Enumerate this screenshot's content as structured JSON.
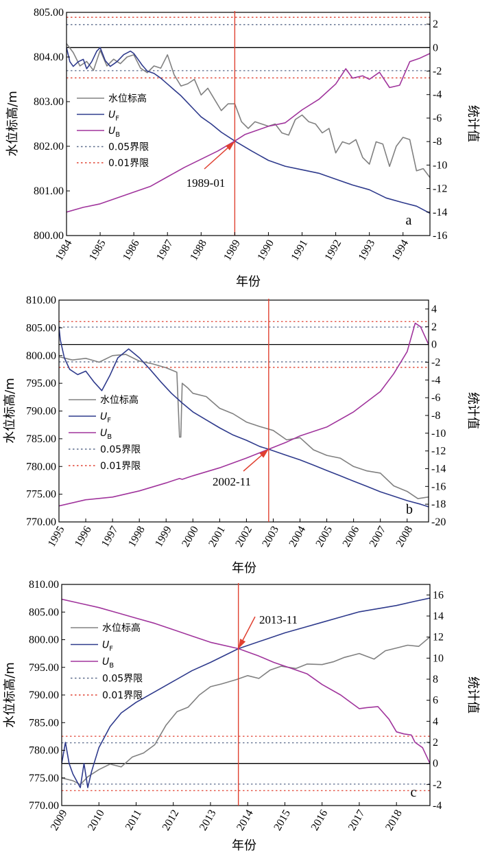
{
  "figure": {
    "colors": {
      "water_level": "#808080",
      "uf": "#2e3a8c",
      "ub": "#a0349c",
      "limit_005": "#5a6a8a",
      "limit_001": "#e04030",
      "change_point": "#e04030",
      "zero_line": "#000000"
    }
  },
  "chart_data": [
    {
      "type": "line",
      "panel_label": "a",
      "xlabel": "年份",
      "ylabel_left": "水位标高/m",
      "ylabel_right": "统计值",
      "xlim": [
        1984,
        1994.8
      ],
      "x_ticks": [
        1984,
        1985,
        1986,
        1987,
        1988,
        1989,
        1990,
        1991,
        1992,
        1993,
        1994
      ],
      "ylim_left": [
        800,
        805
      ],
      "y_ticks_left": [
        "800.00",
        "801.00",
        "802.00",
        "803.00",
        "804.00",
        "805.00"
      ],
      "ylim_right": [
        -16,
        3
      ],
      "y_ticks_right": [
        -16,
        -14,
        -12,
        -10,
        -8,
        -6,
        -4,
        -2,
        0,
        2
      ],
      "legend": [
        "水位标高",
        "UF",
        "UB",
        "0.05界限",
        "0.01界限"
      ],
      "annotation": {
        "text": "1989-01",
        "x": 1989.0,
        "y_stat": -8.0
      },
      "change_point_x": 1989.0,
      "limits": {
        "p005": [
          -1.96,
          1.96
        ],
        "p001": [
          -2.58,
          2.58
        ]
      },
      "series": [
        {
          "name": "水位标高",
          "axis": "left",
          "x": [
            1984.0,
            1984.2,
            1984.4,
            1984.6,
            1984.8,
            1985.0,
            1985.2,
            1985.4,
            1985.6,
            1985.8,
            1986.0,
            1986.2,
            1986.4,
            1986.6,
            1986.8,
            1987.0,
            1987.2,
            1987.4,
            1987.6,
            1987.8,
            1988.0,
            1988.2,
            1988.4,
            1988.6,
            1988.8,
            1989.0,
            1989.2,
            1989.4,
            1989.6,
            1989.8,
            1990.0,
            1990.2,
            1990.4,
            1990.6,
            1990.8,
            1991.0,
            1991.2,
            1991.4,
            1991.6,
            1991.8,
            1992.0,
            1992.2,
            1992.4,
            1992.6,
            1992.8,
            1993.0,
            1993.2,
            1993.4,
            1993.6,
            1993.8,
            1994.0,
            1994.2,
            1994.4,
            1994.6,
            1994.8
          ],
          "y": [
            804.3,
            804.1,
            803.8,
            803.9,
            803.7,
            804.15,
            803.8,
            803.95,
            803.85,
            804.0,
            804.05,
            803.75,
            803.65,
            803.8,
            803.75,
            804.05,
            803.6,
            803.35,
            803.4,
            803.5,
            803.15,
            803.3,
            803.05,
            802.8,
            802.95,
            802.95,
            802.55,
            802.4,
            802.55,
            802.5,
            802.45,
            802.5,
            802.3,
            802.25,
            802.6,
            802.7,
            802.55,
            802.5,
            802.3,
            802.4,
            801.85,
            802.1,
            802.05,
            802.15,
            801.75,
            801.6,
            802.1,
            802.05,
            801.55,
            802.0,
            802.2,
            802.15,
            801.45,
            801.5,
            801.3
          ]
        },
        {
          "name": "UF",
          "axis": "right",
          "x": [
            1984.0,
            1984.1,
            1984.2,
            1984.35,
            1984.5,
            1984.6,
            1984.75,
            1984.9,
            1985.0,
            1985.15,
            1985.3,
            1985.5,
            1985.7,
            1985.9,
            1986.0,
            1986.1,
            1986.25,
            1986.4,
            1986.6,
            1986.8,
            1987.0,
            1987.2,
            1987.4,
            1987.6,
            1987.8,
            1988.0,
            1988.3,
            1988.6,
            1989.0,
            1989.5,
            1990.0,
            1990.5,
            1991.0,
            1991.5,
            1992.0,
            1992.5,
            1993.0,
            1993.5,
            1994.0,
            1994.4,
            1994.8
          ],
          "y": [
            0.0,
            -1.2,
            -1.6,
            -1.2,
            -1.0,
            -1.8,
            -1.2,
            -0.3,
            0.0,
            -1.1,
            -1.6,
            -1.2,
            -0.6,
            -0.3,
            -0.5,
            -0.9,
            -1.5,
            -2.0,
            -2.2,
            -2.6,
            -3.1,
            -3.6,
            -4.1,
            -4.7,
            -5.3,
            -5.9,
            -6.5,
            -7.2,
            -7.95,
            -8.8,
            -9.6,
            -10.1,
            -10.4,
            -10.7,
            -11.2,
            -11.7,
            -12.1,
            -12.8,
            -13.2,
            -13.5,
            -14.1
          ]
        },
        {
          "name": "UB",
          "axis": "right",
          "x": [
            1984.0,
            1984.5,
            1985.0,
            1985.5,
            1986.0,
            1986.5,
            1987.0,
            1987.5,
            1988.0,
            1988.5,
            1989.0,
            1989.3,
            1989.6,
            1990.0,
            1990.5,
            1991.0,
            1991.5,
            1992.0,
            1992.3,
            1992.5,
            1992.8,
            1993.0,
            1993.3,
            1993.6,
            1993.9,
            1994.2,
            1994.5,
            1994.8
          ],
          "y": [
            -14.0,
            -13.6,
            -13.3,
            -12.8,
            -12.3,
            -11.8,
            -11.0,
            -10.2,
            -9.5,
            -8.8,
            -7.95,
            -7.4,
            -7.1,
            -6.7,
            -6.4,
            -5.3,
            -4.4,
            -3.1,
            -1.8,
            -2.6,
            -2.4,
            -2.7,
            -2.1,
            -3.4,
            -3.2,
            -1.2,
            -0.9,
            -0.5
          ]
        }
      ]
    },
    {
      "type": "line",
      "panel_label": "b",
      "xlabel": "年份",
      "ylabel_left": "水位标高/m",
      "ylabel_right": "统计值",
      "xlim": [
        1995,
        2008.8
      ],
      "x_ticks": [
        1995,
        1996,
        1997,
        1998,
        1999,
        2000,
        2001,
        2002,
        2003,
        2004,
        2005,
        2006,
        2007,
        2008
      ],
      "ylim_left": [
        770,
        810
      ],
      "y_ticks_left": [
        "770.00",
        "775.00",
        "780.00",
        "785.00",
        "790.00",
        "795.00",
        "800.00",
        "805.00",
        "810.00"
      ],
      "ylim_right": [
        -20,
        5
      ],
      "y_ticks_right": [
        -20,
        -18,
        -16,
        -14,
        -12,
        -10,
        -8,
        -6,
        -4,
        -2,
        0,
        2,
        4
      ],
      "legend": [
        "水位标高",
        "UF",
        "UB",
        "0.05界限",
        "0.01界限"
      ],
      "annotation": {
        "text": "2002-11",
        "x": 2002.83,
        "y_stat": -11.8
      },
      "change_point_x": 2002.83,
      "limits": {
        "p005": [
          -1.96,
          1.96
        ],
        "p001": [
          -2.58,
          2.58
        ]
      },
      "series": [
        {
          "name": "水位标高",
          "axis": "left",
          "x": [
            1995.0,
            1995.5,
            1996.0,
            1996.5,
            1997.0,
            1997.5,
            1998.0,
            1998.5,
            1999.0,
            1999.4,
            1999.5,
            1999.55,
            1999.6,
            1999.8,
            2000.0,
            2000.5,
            2001.0,
            2001.5,
            2002.0,
            2002.5,
            2003.0,
            2003.5,
            2004.0,
            2004.5,
            2005.0,
            2005.5,
            2006.0,
            2006.5,
            2007.0,
            2007.5,
            2008.0,
            2008.4,
            2008.8
          ],
          "y": [
            799.8,
            799.2,
            799.5,
            798.8,
            800.0,
            800.2,
            799.0,
            798.5,
            797.8,
            797.0,
            785.3,
            785.3,
            795.0,
            794.2,
            793.2,
            792.6,
            790.5,
            789.5,
            788.0,
            787.2,
            786.5,
            784.8,
            785.2,
            783.0,
            782.0,
            781.5,
            780.0,
            779.2,
            778.8,
            776.5,
            775.5,
            774.2,
            774.5
          ]
        },
        {
          "name": "UF",
          "axis": "right",
          "x": [
            1995.0,
            1995.05,
            1995.2,
            1995.4,
            1995.7,
            1996.0,
            1996.3,
            1996.6,
            1996.9,
            1997.2,
            1997.6,
            1998.0,
            1998.4,
            1998.8,
            1999.2,
            1999.6,
            2000.0,
            2000.5,
            2001.0,
            2001.5,
            2002.0,
            2002.5,
            2002.83,
            2003.5,
            2004.0,
            2004.5,
            2005.0,
            2005.5,
            2006.0,
            2006.5,
            2007.0,
            2007.5,
            2008.0,
            2008.5,
            2008.8
          ],
          "y": [
            2.0,
            0.5,
            -1.5,
            -2.8,
            -3.4,
            -3.0,
            -4.2,
            -5.2,
            -3.5,
            -1.5,
            -0.5,
            -1.5,
            -2.8,
            -4.2,
            -5.5,
            -6.6,
            -7.6,
            -8.5,
            -9.4,
            -10.2,
            -10.8,
            -11.5,
            -11.8,
            -12.5,
            -13.0,
            -13.6,
            -14.2,
            -14.8,
            -15.4,
            -16.0,
            -16.6,
            -17.1,
            -17.6,
            -18.0,
            -18.3
          ]
        },
        {
          "name": "UB",
          "axis": "right",
          "x": [
            1995.0,
            1996.0,
            1997.0,
            1998.0,
            1999.0,
            1999.5,
            1999.6,
            2000.0,
            2001.0,
            2002.0,
            2002.83,
            2003.5,
            2004.0,
            2005.0,
            2006.0,
            2007.0,
            2007.5,
            2008.0,
            2008.3,
            2008.5,
            2008.8
          ],
          "y": [
            -18.2,
            -17.5,
            -17.2,
            -16.5,
            -15.6,
            -15.1,
            -15.2,
            -14.8,
            -13.9,
            -12.8,
            -11.8,
            -11.0,
            -10.3,
            -9.3,
            -7.6,
            -5.3,
            -3.3,
            -0.8,
            2.4,
            2.0,
            0.0
          ]
        }
      ]
    },
    {
      "type": "line",
      "panel_label": "c",
      "xlabel": "年份",
      "ylabel_left": "水位标高/m",
      "ylabel_right": "统计值",
      "xlim": [
        2009,
        2018.9
      ],
      "x_ticks": [
        2009,
        2010,
        2011,
        2012,
        2013,
        2014,
        2015,
        2016,
        2017,
        2018
      ],
      "ylim_left": [
        770,
        810
      ],
      "y_ticks_left": [
        "770.00",
        "775.00",
        "780.00",
        "785.00",
        "790.00",
        "795.00",
        "800.00",
        "805.00",
        "810.00"
      ],
      "ylim_right": [
        -4,
        17
      ],
      "y_ticks_right": [
        -4,
        -2,
        0,
        2,
        4,
        6,
        8,
        10,
        12,
        14,
        16
      ],
      "legend": [
        "水位标高",
        "UF",
        "UB",
        "0.05界限",
        "0.01界限"
      ],
      "annotation": {
        "text": "2013-11",
        "x": 2013.75,
        "y_stat": 10.9
      },
      "change_point_x": 2013.75,
      "limits": {
        "p005": [
          -1.96,
          1.96
        ],
        "p001": [
          -2.58,
          2.58
        ]
      },
      "series": [
        {
          "name": "水位标高",
          "axis": "left",
          "x": [
            2009.0,
            2009.3,
            2009.5,
            2009.7,
            2010.0,
            2010.3,
            2010.6,
            2010.9,
            2011.2,
            2011.5,
            2011.8,
            2012.1,
            2012.4,
            2012.7,
            2013.0,
            2013.3,
            2013.7,
            2014.0,
            2014.3,
            2014.6,
            2014.9,
            2015.3,
            2015.6,
            2016.0,
            2016.3,
            2016.6,
            2017.0,
            2017.4,
            2017.7,
            2018.0,
            2018.3,
            2018.6,
            2018.9
          ],
          "y": [
            775.0,
            774.5,
            773.8,
            775.2,
            776.5,
            777.5,
            777.0,
            778.8,
            779.5,
            781.0,
            784.5,
            787.0,
            787.8,
            790.0,
            791.5,
            792.0,
            792.8,
            793.5,
            793.0,
            794.5,
            795.2,
            794.8,
            795.6,
            795.5,
            796.0,
            796.8,
            797.5,
            796.5,
            798.0,
            798.5,
            799.0,
            798.8,
            800.5
          ]
        },
        {
          "name": "UF",
          "axis": "right",
          "x": [
            2009.0,
            2009.1,
            2009.2,
            2009.3,
            2009.5,
            2009.6,
            2009.7,
            2009.8,
            2010.0,
            2010.3,
            2010.6,
            2011.0,
            2011.5,
            2012.0,
            2012.5,
            2013.0,
            2013.75,
            2014.5,
            2015.0,
            2015.5,
            2016.0,
            2016.5,
            2017.0,
            2017.5,
            2018.0,
            2018.5,
            2018.9
          ],
          "y": [
            0.0,
            2.0,
            0.0,
            -1.0,
            -2.3,
            0.0,
            -2.3,
            -0.8,
            1.5,
            3.5,
            4.8,
            5.8,
            6.8,
            7.8,
            8.8,
            9.6,
            10.9,
            11.8,
            12.4,
            12.9,
            13.4,
            13.9,
            14.4,
            14.7,
            15.0,
            15.4,
            15.7
          ]
        },
        {
          "name": "UB",
          "axis": "right",
          "x": [
            2009.0,
            2009.5,
            2010.0,
            2010.5,
            2011.0,
            2011.5,
            2012.0,
            2012.5,
            2013.0,
            2013.75,
            2014.3,
            2014.7,
            2015.2,
            2015.6,
            2016.0,
            2016.5,
            2017.0,
            2017.2,
            2017.5,
            2017.8,
            2018.0,
            2018.2,
            2018.4,
            2018.5,
            2018.7,
            2018.9
          ],
          "y": [
            15.6,
            15.2,
            14.8,
            14.3,
            13.8,
            13.3,
            12.7,
            12.1,
            11.5,
            10.9,
            10.2,
            9.6,
            9.0,
            8.5,
            7.5,
            6.5,
            5.2,
            5.3,
            5.4,
            4.2,
            3.0,
            2.8,
            2.7,
            2.0,
            1.5,
            0.0
          ]
        }
      ]
    }
  ]
}
